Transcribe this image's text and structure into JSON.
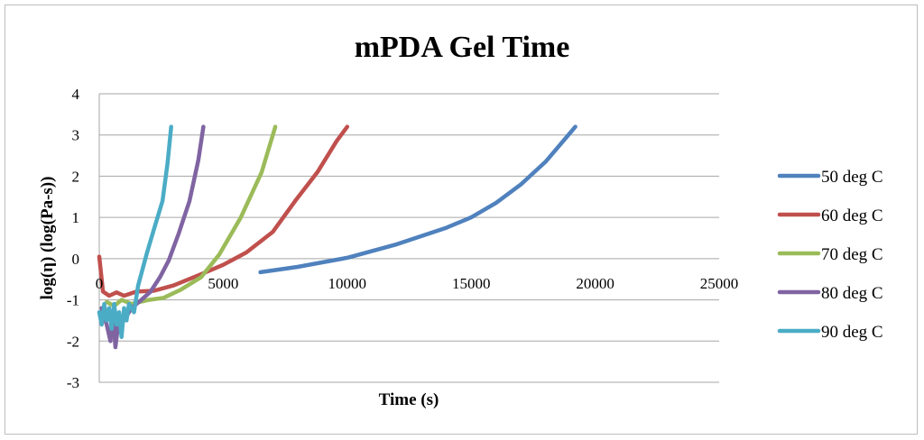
{
  "chart_data": {
    "type": "line",
    "title": "mPDA Gel Time",
    "xlabel": "Time (s)",
    "ylabel": "log(η) (log(Pa-s))",
    "xlim": [
      0,
      25000
    ],
    "ylim": [
      -3,
      4
    ],
    "xticks": [
      0,
      5000,
      10000,
      15000,
      20000,
      25000
    ],
    "yticks": [
      -3,
      -2,
      -1,
      0,
      1,
      2,
      3,
      4
    ],
    "grid": "horizontal",
    "legend": "right",
    "series": [
      {
        "name": "50 deg C",
        "color": "#4f81bd",
        "points": [
          [
            6500,
            -0.33
          ],
          [
            8000,
            -0.2
          ],
          [
            10000,
            0.02
          ],
          [
            12000,
            0.35
          ],
          [
            14000,
            0.75
          ],
          [
            15000,
            1.0
          ],
          [
            16000,
            1.35
          ],
          [
            17000,
            1.8
          ],
          [
            18000,
            2.35
          ],
          [
            19200,
            3.2
          ]
        ]
      },
      {
        "name": "60 deg C",
        "color": "#c0504d",
        "points": [
          [
            0,
            0.05
          ],
          [
            150,
            -0.8
          ],
          [
            400,
            -0.9
          ],
          [
            700,
            -0.82
          ],
          [
            1000,
            -0.9
          ],
          [
            1500,
            -0.8
          ],
          [
            2200,
            -0.78
          ],
          [
            3000,
            -0.65
          ],
          [
            4100,
            -0.38
          ],
          [
            5000,
            -0.15
          ],
          [
            5930,
            0.15
          ],
          [
            7000,
            0.65
          ],
          [
            7900,
            1.4
          ],
          [
            8800,
            2.1
          ],
          [
            9570,
            2.85
          ],
          [
            10000,
            3.2
          ]
        ]
      },
      {
        "name": "70 deg C",
        "color": "#9bbb59",
        "points": [
          [
            300,
            -1.05
          ],
          [
            600,
            -1.15
          ],
          [
            900,
            -1.0
          ],
          [
            1300,
            -1.1
          ],
          [
            2000,
            -1.0
          ],
          [
            2600,
            -0.95
          ],
          [
            3300,
            -0.75
          ],
          [
            4110,
            -0.45
          ],
          [
            4840,
            0.1
          ],
          [
            5710,
            1.0
          ],
          [
            6550,
            2.1
          ],
          [
            7100,
            3.2
          ]
        ]
      },
      {
        "name": "80 deg C",
        "color": "#8064a2",
        "points": [
          [
            100,
            -1.2
          ],
          [
            300,
            -1.6
          ],
          [
            450,
            -2.0
          ],
          [
            550,
            -1.3
          ],
          [
            650,
            -2.15
          ],
          [
            800,
            -1.4
          ],
          [
            1000,
            -1.5
          ],
          [
            1300,
            -1.2
          ],
          [
            1700,
            -1.0
          ],
          [
            2070,
            -0.8
          ],
          [
            2450,
            -0.45
          ],
          [
            2800,
            -0.05
          ],
          [
            3200,
            0.6
          ],
          [
            3640,
            1.4
          ],
          [
            4000,
            2.4
          ],
          [
            4200,
            3.2
          ]
        ]
      },
      {
        "name": "90 deg C",
        "color": "#4bacc6",
        "points": [
          [
            0,
            -1.3
          ],
          [
            100,
            -1.6
          ],
          [
            200,
            -1.1
          ],
          [
            300,
            -1.5
          ],
          [
            400,
            -1.2
          ],
          [
            500,
            -1.7
          ],
          [
            600,
            -1.1
          ],
          [
            700,
            -1.6
          ],
          [
            800,
            -1.3
          ],
          [
            900,
            -1.9
          ],
          [
            1000,
            -1.2
          ],
          [
            1100,
            -1.5
          ],
          [
            1200,
            -1.1
          ],
          [
            1400,
            -1.3
          ],
          [
            1570,
            -0.65
          ],
          [
            1930,
            0.15
          ],
          [
            2250,
            0.8
          ],
          [
            2550,
            1.4
          ],
          [
            2750,
            2.3
          ],
          [
            2900,
            3.2
          ]
        ]
      }
    ]
  }
}
